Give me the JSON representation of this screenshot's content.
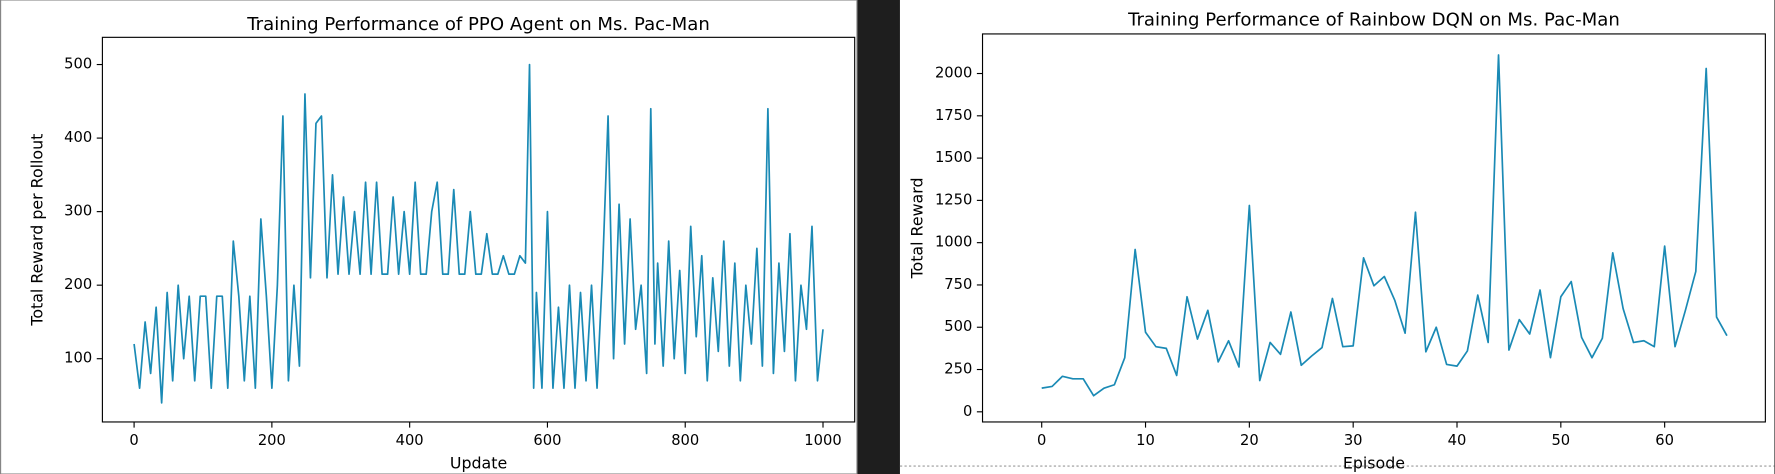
{
  "chart_data": [
    {
      "type": "line",
      "title": "Training Performance of PPO Agent on Ms. Pac-Man",
      "xlabel": "Update",
      "ylabel": "Total Reward per Rollout",
      "x": [
        0,
        8,
        16,
        24,
        32,
        40,
        48,
        56,
        64,
        72,
        80,
        88,
        96,
        104,
        112,
        120,
        128,
        136,
        144,
        152,
        160,
        168,
        176,
        184,
        192,
        200,
        208,
        216,
        224,
        232,
        240,
        248,
        256,
        264,
        272,
        280,
        288,
        296,
        304,
        312,
        320,
        328,
        336,
        344,
        352,
        360,
        368,
        376,
        384,
        392,
        400,
        408,
        416,
        424,
        432,
        440,
        448,
        456,
        464,
        472,
        480,
        488,
        496,
        504,
        512,
        520,
        528,
        536,
        544,
        552,
        560,
        568,
        574,
        580,
        584,
        592,
        600,
        608,
        616,
        624,
        632,
        640,
        648,
        656,
        664,
        672,
        680,
        688,
        696,
        704,
        712,
        720,
        728,
        736,
        744,
        750,
        756,
        760,
        768,
        776,
        784,
        792,
        800,
        808,
        816,
        824,
        832,
        840,
        848,
        856,
        864,
        872,
        880,
        888,
        896,
        904,
        912,
        920,
        928,
        936,
        944,
        952,
        960,
        968,
        976,
        984,
        992,
        1000
      ],
      "series": [
        {
          "name": "PPO",
          "color": "#1a8ab5",
          "values": [
            120,
            60,
            150,
            80,
            170,
            40,
            190,
            70,
            200,
            100,
            185,
            70,
            185,
            185,
            60,
            185,
            185,
            60,
            260,
            185,
            70,
            185,
            60,
            290,
            185,
            60,
            200,
            430,
            70,
            200,
            90,
            460,
            210,
            420,
            430,
            210,
            350,
            215,
            320,
            215,
            300,
            215,
            340,
            215,
            340,
            215,
            215,
            320,
            215,
            300,
            215,
            340,
            215,
            215,
            300,
            340,
            215,
            215,
            330,
            215,
            215,
            300,
            215,
            215,
            270,
            215,
            215,
            240,
            215,
            215,
            240,
            230,
            500,
            60,
            190,
            60,
            300,
            60,
            170,
            60,
            200,
            60,
            190,
            70,
            200,
            60,
            220,
            430,
            100,
            310,
            120,
            290,
            140,
            200,
            80,
            440,
            120,
            230,
            90,
            260,
            100,
            220,
            80,
            280,
            130,
            240,
            70,
            210,
            110,
            260,
            90,
            230,
            70,
            200,
            120,
            250,
            90,
            440,
            80,
            230,
            110,
            270,
            70,
            200,
            140,
            280,
            70,
            140
          ]
        }
      ],
      "xlim": [
        -46,
        1046
      ],
      "ylim": [
        14,
        537
      ],
      "xticks": [
        0,
        200,
        400,
        600,
        800,
        1000
      ],
      "yticks": [
        100,
        200,
        300,
        400,
        500
      ]
    },
    {
      "type": "line",
      "title": "Training Performance of Rainbow DQN on Ms. Pac-Man",
      "xlabel": "Episode",
      "ylabel": "Total Reward",
      "x": [
        0,
        1,
        2,
        3,
        4,
        5,
        6,
        7,
        8,
        9,
        10,
        11,
        12,
        13,
        14,
        15,
        16,
        17,
        18,
        19,
        20,
        21,
        22,
        23,
        24,
        25,
        26,
        27,
        28,
        29,
        30,
        31,
        32,
        33,
        34,
        35,
        36,
        37,
        38,
        39,
        40,
        41,
        42,
        43,
        44,
        45,
        46,
        47,
        48,
        49,
        50,
        51,
        52,
        53,
        54,
        55,
        56,
        57,
        58,
        59,
        60,
        61,
        62,
        63,
        64,
        65,
        66
      ],
      "series": [
        {
          "name": "Rainbow DQN",
          "color": "#1a8ab5",
          "values": [
            140,
            150,
            210,
            195,
            195,
            95,
            140,
            160,
            320,
            960,
            470,
            385,
            375,
            215,
            680,
            430,
            600,
            295,
            420,
            265,
            1220,
            185,
            410,
            340,
            590,
            275,
            330,
            380,
            670,
            385,
            390,
            910,
            745,
            800,
            660,
            465,
            1180,
            355,
            500,
            280,
            270,
            360,
            690,
            410,
            2110,
            365,
            545,
            460,
            720,
            320,
            680,
            770,
            440,
            320,
            435,
            940,
            610,
            410,
            420,
            385,
            980,
            385,
            600,
            830,
            2030,
            560,
            450
          ]
        }
      ],
      "xlim": [
        -5.7,
        69.7
      ],
      "ylim": [
        -60,
        2234
      ],
      "xticks": [
        0,
        10,
        20,
        30,
        40,
        50,
        60
      ],
      "yticks": [
        0,
        250,
        500,
        750,
        1000,
        1250,
        1500,
        1750,
        2000
      ]
    }
  ]
}
